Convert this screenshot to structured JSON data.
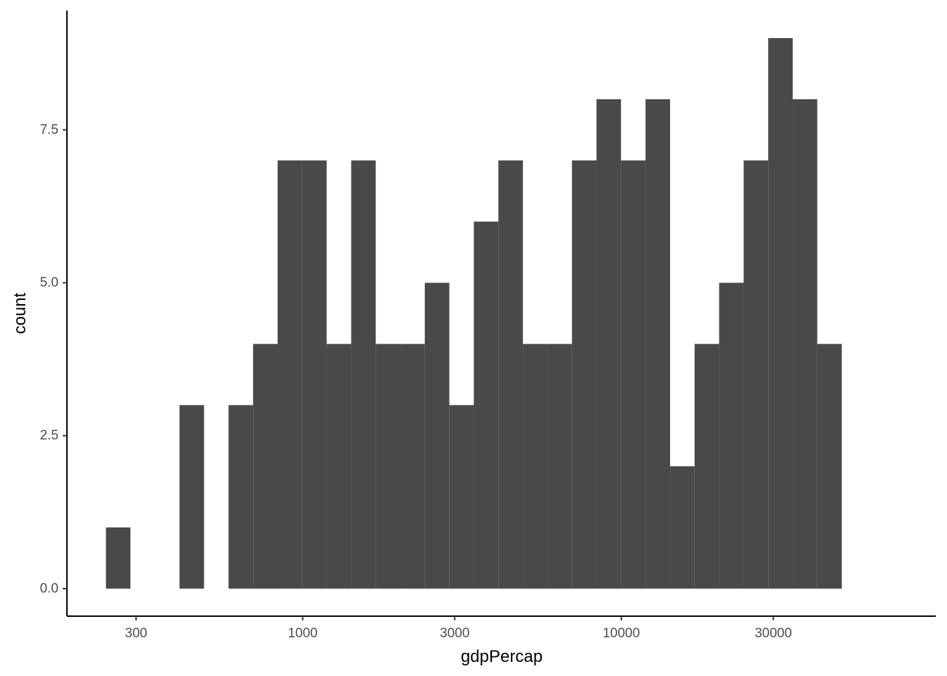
{
  "chart_data": {
    "type": "bar",
    "subtype": "histogram",
    "title": "",
    "xlabel": "gdpPercap",
    "ylabel": "count",
    "x_scale": "log10",
    "xlim": [
      182,
      97000
    ],
    "ylim": [
      -0.45,
      9.45
    ],
    "x_ticks": [
      300,
      1000,
      3000,
      10000,
      30000
    ],
    "x_tick_labels": [
      "300",
      "1000",
      "3000",
      "10000",
      "30000"
    ],
    "y_ticks": [
      0.0,
      2.5,
      5.0,
      7.5
    ],
    "y_tick_labels": [
      "0.0",
      "2.5",
      "5.0",
      "7.5"
    ],
    "bins": {
      "count": 30,
      "first_left_edge": 241.2,
      "last_right_edge": 49190,
      "counts": [
        1,
        0,
        0,
        3,
        0,
        3,
        4,
        7,
        7,
        4,
        7,
        4,
        4,
        5,
        3,
        6,
        7,
        4,
        4,
        7,
        8,
        7,
        8,
        2,
        4,
        5,
        7,
        9,
        8,
        4
      ]
    },
    "grid": false,
    "legend": "none",
    "colors": {
      "bar_fill": "#494949",
      "axis_line": "#000000",
      "tick_label": "#4d4d4d",
      "axis_title": "#000000",
      "background": "#ffffff"
    }
  }
}
